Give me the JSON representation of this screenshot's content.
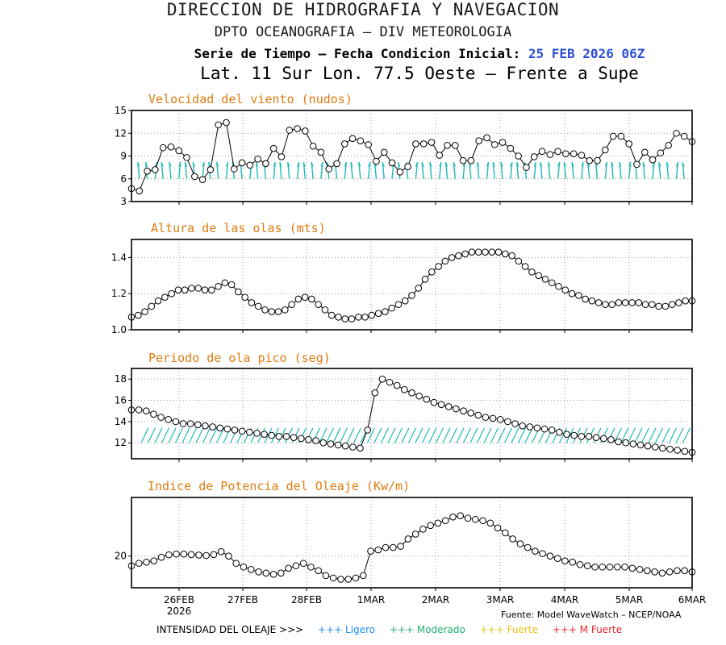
{
  "header": {
    "title1": "DIRECCION DE HIDROGRAFIA Y NAVEGACION",
    "title2": "DPTO OCEANOGRAFIA – DIV METEOROLOGIA",
    "subtitle_label": "Serie de Tiempo – Fecha Condicion Inicial:",
    "subtitle_date": "25 FEB 2026 06Z",
    "location": "Lat. 11 Sur  Lon. 77.5 Oeste – Frente a Supe"
  },
  "colors": {
    "panel_title": "#e07b10",
    "arrows": "#1fb8b8",
    "date_highlight": "#2b4fd8",
    "ligero": "#1e90ff",
    "moderado": "#1fb070",
    "fuerte": "#e8c419",
    "m_fuerte": "#e8262e"
  },
  "x_axis": {
    "tick_labels": [
      "26FEB",
      "27FEB",
      "28FEB",
      "1MAR",
      "2MAR",
      "3MAR",
      "4MAR",
      "5MAR",
      "6MAR"
    ],
    "year_label": "2026"
  },
  "source": "Fuente: Model WaveWatch – NCEP/NOAA",
  "legend": {
    "intensity_label": "INTENSIDAD DEL OLEAJE >>>",
    "items": [
      {
        "label": "+++ Ligero",
        "color": "#1e90ff"
      },
      {
        "label": "+++ Moderado",
        "color": "#1fb070"
      },
      {
        "label": "+++ Fuerte",
        "color": "#e8c419"
      },
      {
        "label": "+++ M Fuerte",
        "color": "#e8262e"
      }
    ]
  },
  "chart_data": [
    {
      "type": "line",
      "title": "Velocidad del viento (nudos)",
      "ylim": [
        3,
        15
      ],
      "yticks": [
        3,
        6,
        9,
        12,
        15
      ],
      "grid": true,
      "x_start": "2026-02-25T06Z",
      "x_step_hours": 3,
      "values": [
        4.7,
        4.4,
        7.0,
        7.2,
        10.1,
        10.2,
        9.7,
        8.8,
        6.3,
        5.9,
        7.2,
        13.1,
        13.4,
        7.3,
        8.1,
        7.8,
        8.6,
        8.0,
        10.0,
        8.9,
        12.4,
        12.6,
        12.3,
        10.3,
        9.5,
        7.3,
        8.0,
        10.6,
        11.3,
        11.0,
        10.5,
        8.3,
        9.5,
        8.1,
        6.9,
        7.6,
        10.6,
        10.6,
        10.8,
        9.1,
        10.4,
        10.4,
        8.4,
        8.4,
        11.0,
        11.4,
        10.5,
        10.8,
        10.0,
        9.0,
        7.5,
        8.9,
        9.6,
        9.2,
        9.6,
        9.3,
        9.3,
        9.1,
        8.4,
        8.4,
        9.8,
        11.6,
        11.6,
        10.6,
        7.9,
        9.5,
        8.5,
        9.4,
        10.4,
        12.0,
        11.6,
        10.9
      ],
      "wind_arrows": true
    },
    {
      "type": "line",
      "title": "Altura de las olas (mts)",
      "ylim": [
        1.0,
        1.5
      ],
      "yticks": [
        1.0,
        1.2,
        1.4
      ],
      "grid": true,
      "values": [
        1.07,
        1.08,
        1.1,
        1.13,
        1.16,
        1.18,
        1.2,
        1.22,
        1.22,
        1.23,
        1.23,
        1.22,
        1.22,
        1.24,
        1.26,
        1.25,
        1.21,
        1.18,
        1.15,
        1.13,
        1.11,
        1.1,
        1.1,
        1.11,
        1.14,
        1.17,
        1.18,
        1.17,
        1.14,
        1.11,
        1.08,
        1.07,
        1.06,
        1.06,
        1.07,
        1.07,
        1.08,
        1.09,
        1.1,
        1.12,
        1.14,
        1.16,
        1.19,
        1.23,
        1.28,
        1.32,
        1.35,
        1.38,
        1.4,
        1.41,
        1.42,
        1.43,
        1.43,
        1.43,
        1.43,
        1.43,
        1.42,
        1.41,
        1.38,
        1.35,
        1.32,
        1.3,
        1.28,
        1.26,
        1.24,
        1.22,
        1.2,
        1.19,
        1.17,
        1.16,
        1.15,
        1.14,
        1.14,
        1.15,
        1.15,
        1.15,
        1.15,
        1.14,
        1.14,
        1.13,
        1.13,
        1.14,
        1.15,
        1.16,
        1.16
      ]
    },
    {
      "type": "line",
      "title": "Periodo de ola pico (seg)",
      "ylim": [
        10.5,
        19
      ],
      "yticks": [
        12,
        14,
        16,
        18
      ],
      "grid": true,
      "values": [
        15.1,
        15.1,
        15.0,
        14.7,
        14.4,
        14.2,
        14.0,
        13.8,
        13.8,
        13.7,
        13.6,
        13.5,
        13.4,
        13.3,
        13.2,
        13.1,
        13.0,
        12.9,
        12.8,
        12.7,
        12.6,
        12.6,
        12.5,
        12.4,
        12.3,
        12.2,
        12.0,
        11.9,
        11.8,
        11.7,
        11.6,
        11.5,
        13.2,
        16.7,
        18.0,
        17.7,
        17.4,
        17.0,
        16.7,
        16.4,
        16.1,
        15.8,
        15.6,
        15.4,
        15.2,
        15.0,
        14.8,
        14.6,
        14.4,
        14.3,
        14.2,
        14.0,
        13.8,
        13.6,
        13.5,
        13.4,
        13.3,
        13.2,
        13.0,
        12.8,
        12.7,
        12.6,
        12.6,
        12.5,
        12.4,
        12.3,
        12.1,
        12.0,
        11.9,
        11.8,
        11.7,
        11.6,
        11.5,
        11.4,
        11.3,
        11.2,
        11.1
      ],
      "swell_arrows": true
    },
    {
      "type": "line",
      "title": "Indice de Potencia del Oleaje (Kw/m)",
      "ylim": [
        7,
        44
      ],
      "yticks": [
        20
      ],
      "grid": true,
      "values": [
        16,
        17,
        17.5,
        18,
        19.5,
        20.5,
        20.8,
        20.8,
        20.6,
        20.4,
        20.2,
        20.6,
        21.8,
        20,
        17,
        15.5,
        14.5,
        13.5,
        13,
        12.5,
        13,
        15,
        16,
        17,
        15.5,
        14,
        12,
        11,
        10.5,
        10.5,
        11,
        12,
        22,
        22.5,
        23.5,
        23.5,
        24,
        27,
        29,
        31,
        32.5,
        33.5,
        34.5,
        36,
        36.5,
        35.5,
        35,
        34.5,
        33.5,
        31.5,
        29.5,
        27,
        25,
        23.5,
        22,
        21,
        20,
        19,
        18,
        17.5,
        16.5,
        16,
        15.5,
        15.5,
        15.5,
        15.5,
        15.5,
        15,
        14.5,
        14,
        13.5,
        13,
        13.5,
        14,
        14,
        13.5
      ]
    }
  ]
}
